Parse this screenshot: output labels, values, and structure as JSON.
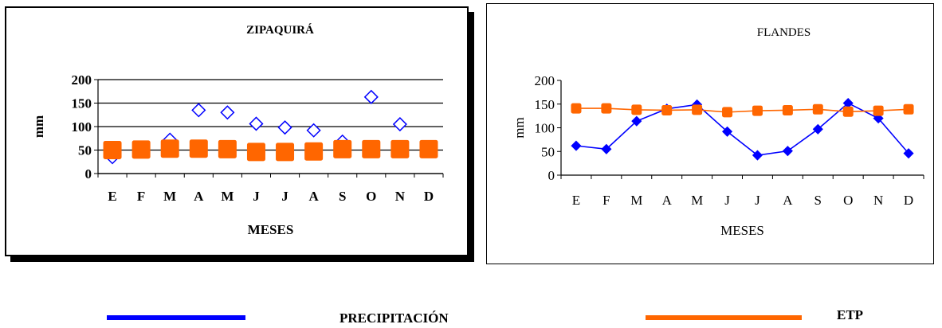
{
  "chart_data": [
    {
      "type": "line",
      "title": "ZIPAQUIRÁ",
      "xlabel": "MESES",
      "ylabel": "mm",
      "categories": [
        "E",
        "F",
        "M",
        "A",
        "M",
        "J",
        "J",
        "A",
        "S",
        "O",
        "N",
        "D"
      ],
      "ylim": [
        0,
        200
      ],
      "yticks": [
        0,
        50,
        100,
        150,
        200
      ],
      "grid": true,
      "series": [
        {
          "name": "PRECIPITACIÓN",
          "color": "#0000ff",
          "marker": "diamond-open",
          "values": [
            35,
            50,
            72,
            135,
            130,
            106,
            98,
            92,
            68,
            163,
            105,
            55
          ]
        },
        {
          "name": "ETP",
          "color": "#ff6600",
          "marker": "square",
          "values": [
            50,
            51,
            53,
            53,
            52,
            46,
            46,
            47,
            52,
            52,
            52,
            52
          ]
        }
      ]
    },
    {
      "type": "line",
      "title": "FLANDES",
      "xlabel": "MESES",
      "ylabel": "mm",
      "categories": [
        "E",
        "F",
        "M",
        "A",
        "M",
        "J",
        "J",
        "A",
        "S",
        "O",
        "N",
        "D"
      ],
      "ylim": [
        0,
        200
      ],
      "yticks": [
        0,
        50,
        100,
        150,
        200
      ],
      "grid": false,
      "series": [
        {
          "name": "PRECIPITACIÓN",
          "color": "#0000ff",
          "marker": "diamond",
          "values": [
            62,
            55,
            114,
            140,
            149,
            92,
            42,
            51,
            97,
            152,
            120,
            46
          ]
        },
        {
          "name": "ETP",
          "color": "#ff6600",
          "marker": "square",
          "values": [
            141,
            141,
            138,
            137,
            138,
            133,
            136,
            137,
            139,
            134,
            136,
            139
          ]
        }
      ]
    }
  ],
  "legend": [
    {
      "label": "PRECIPITACIÓN",
      "color": "#0000ff"
    },
    {
      "label": "ETP",
      "color": "#ff6600"
    }
  ]
}
